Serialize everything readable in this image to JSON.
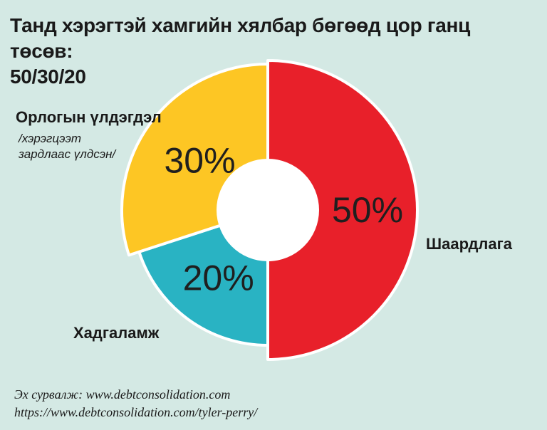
{
  "title": {
    "line1": "Танд хэрэгтэй хамгийн хялбар бөгөөд цор ганц төсөв:",
    "line2": "50/30/20"
  },
  "chart_data": {
    "type": "pie",
    "style": "donut",
    "categories": [
      "Шаардлага",
      "Хадгаламж",
      "Орлогын үлдэгдэл"
    ],
    "values": [
      50,
      20,
      30
    ],
    "value_labels": [
      "50%",
      "20%",
      "30%"
    ],
    "colors": [
      "#e8202a",
      "#29b3c3",
      "#fdc624"
    ],
    "label_notes": {
      "Орлогын үлдэгдэл": {
        "line1": "/хэрэгцээт",
        "line2": "зардлаас үлдсэн/"
      }
    }
  },
  "source": {
    "line1": "Эх сурвалж: www.debtconsolidation.com",
    "line2": "https://www.debtconsolidation.com/tyler-perry/"
  }
}
